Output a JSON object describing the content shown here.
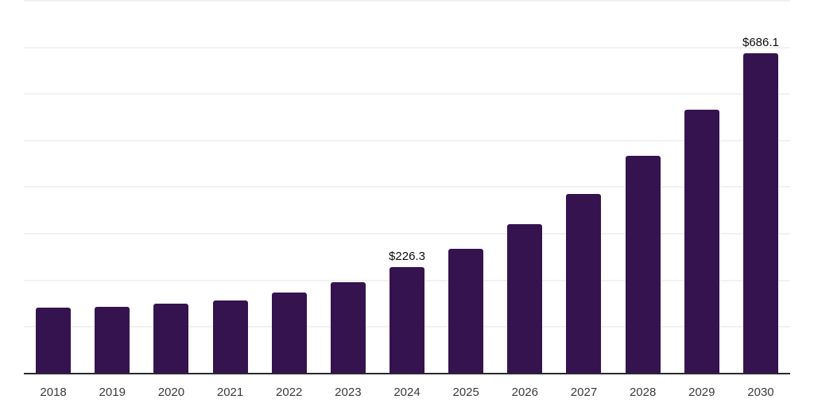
{
  "chart_data": {
    "type": "bar",
    "title": "",
    "xlabel": "",
    "ylabel": "",
    "categories": [
      "2018",
      "2019",
      "2020",
      "2021",
      "2022",
      "2023",
      "2024",
      "2025",
      "2026",
      "2027",
      "2028",
      "2029",
      "2030"
    ],
    "values": [
      139.8,
      141.6,
      148.4,
      155.2,
      172.3,
      194.4,
      226.3,
      266.2,
      319.1,
      384.0,
      465.8,
      564.9,
      686.1
    ],
    "bar_labels": [
      "",
      "",
      "",
      "",
      "",
      "",
      "$226.3",
      "",
      "",
      "",
      "",
      "",
      "$686.1"
    ],
    "ylim": [
      0,
      800
    ],
    "gridline_step": 100,
    "grid": true,
    "y_axis_tick_labels_visible": false,
    "legend": "none"
  },
  "colors": {
    "background": "#FFFFFF",
    "bar": "#35134F",
    "gridline": "#F1F1F4",
    "axis_line": "#2B2B31",
    "tick_label": "#3B3B3B",
    "data_label": "#0D0D0D"
  }
}
